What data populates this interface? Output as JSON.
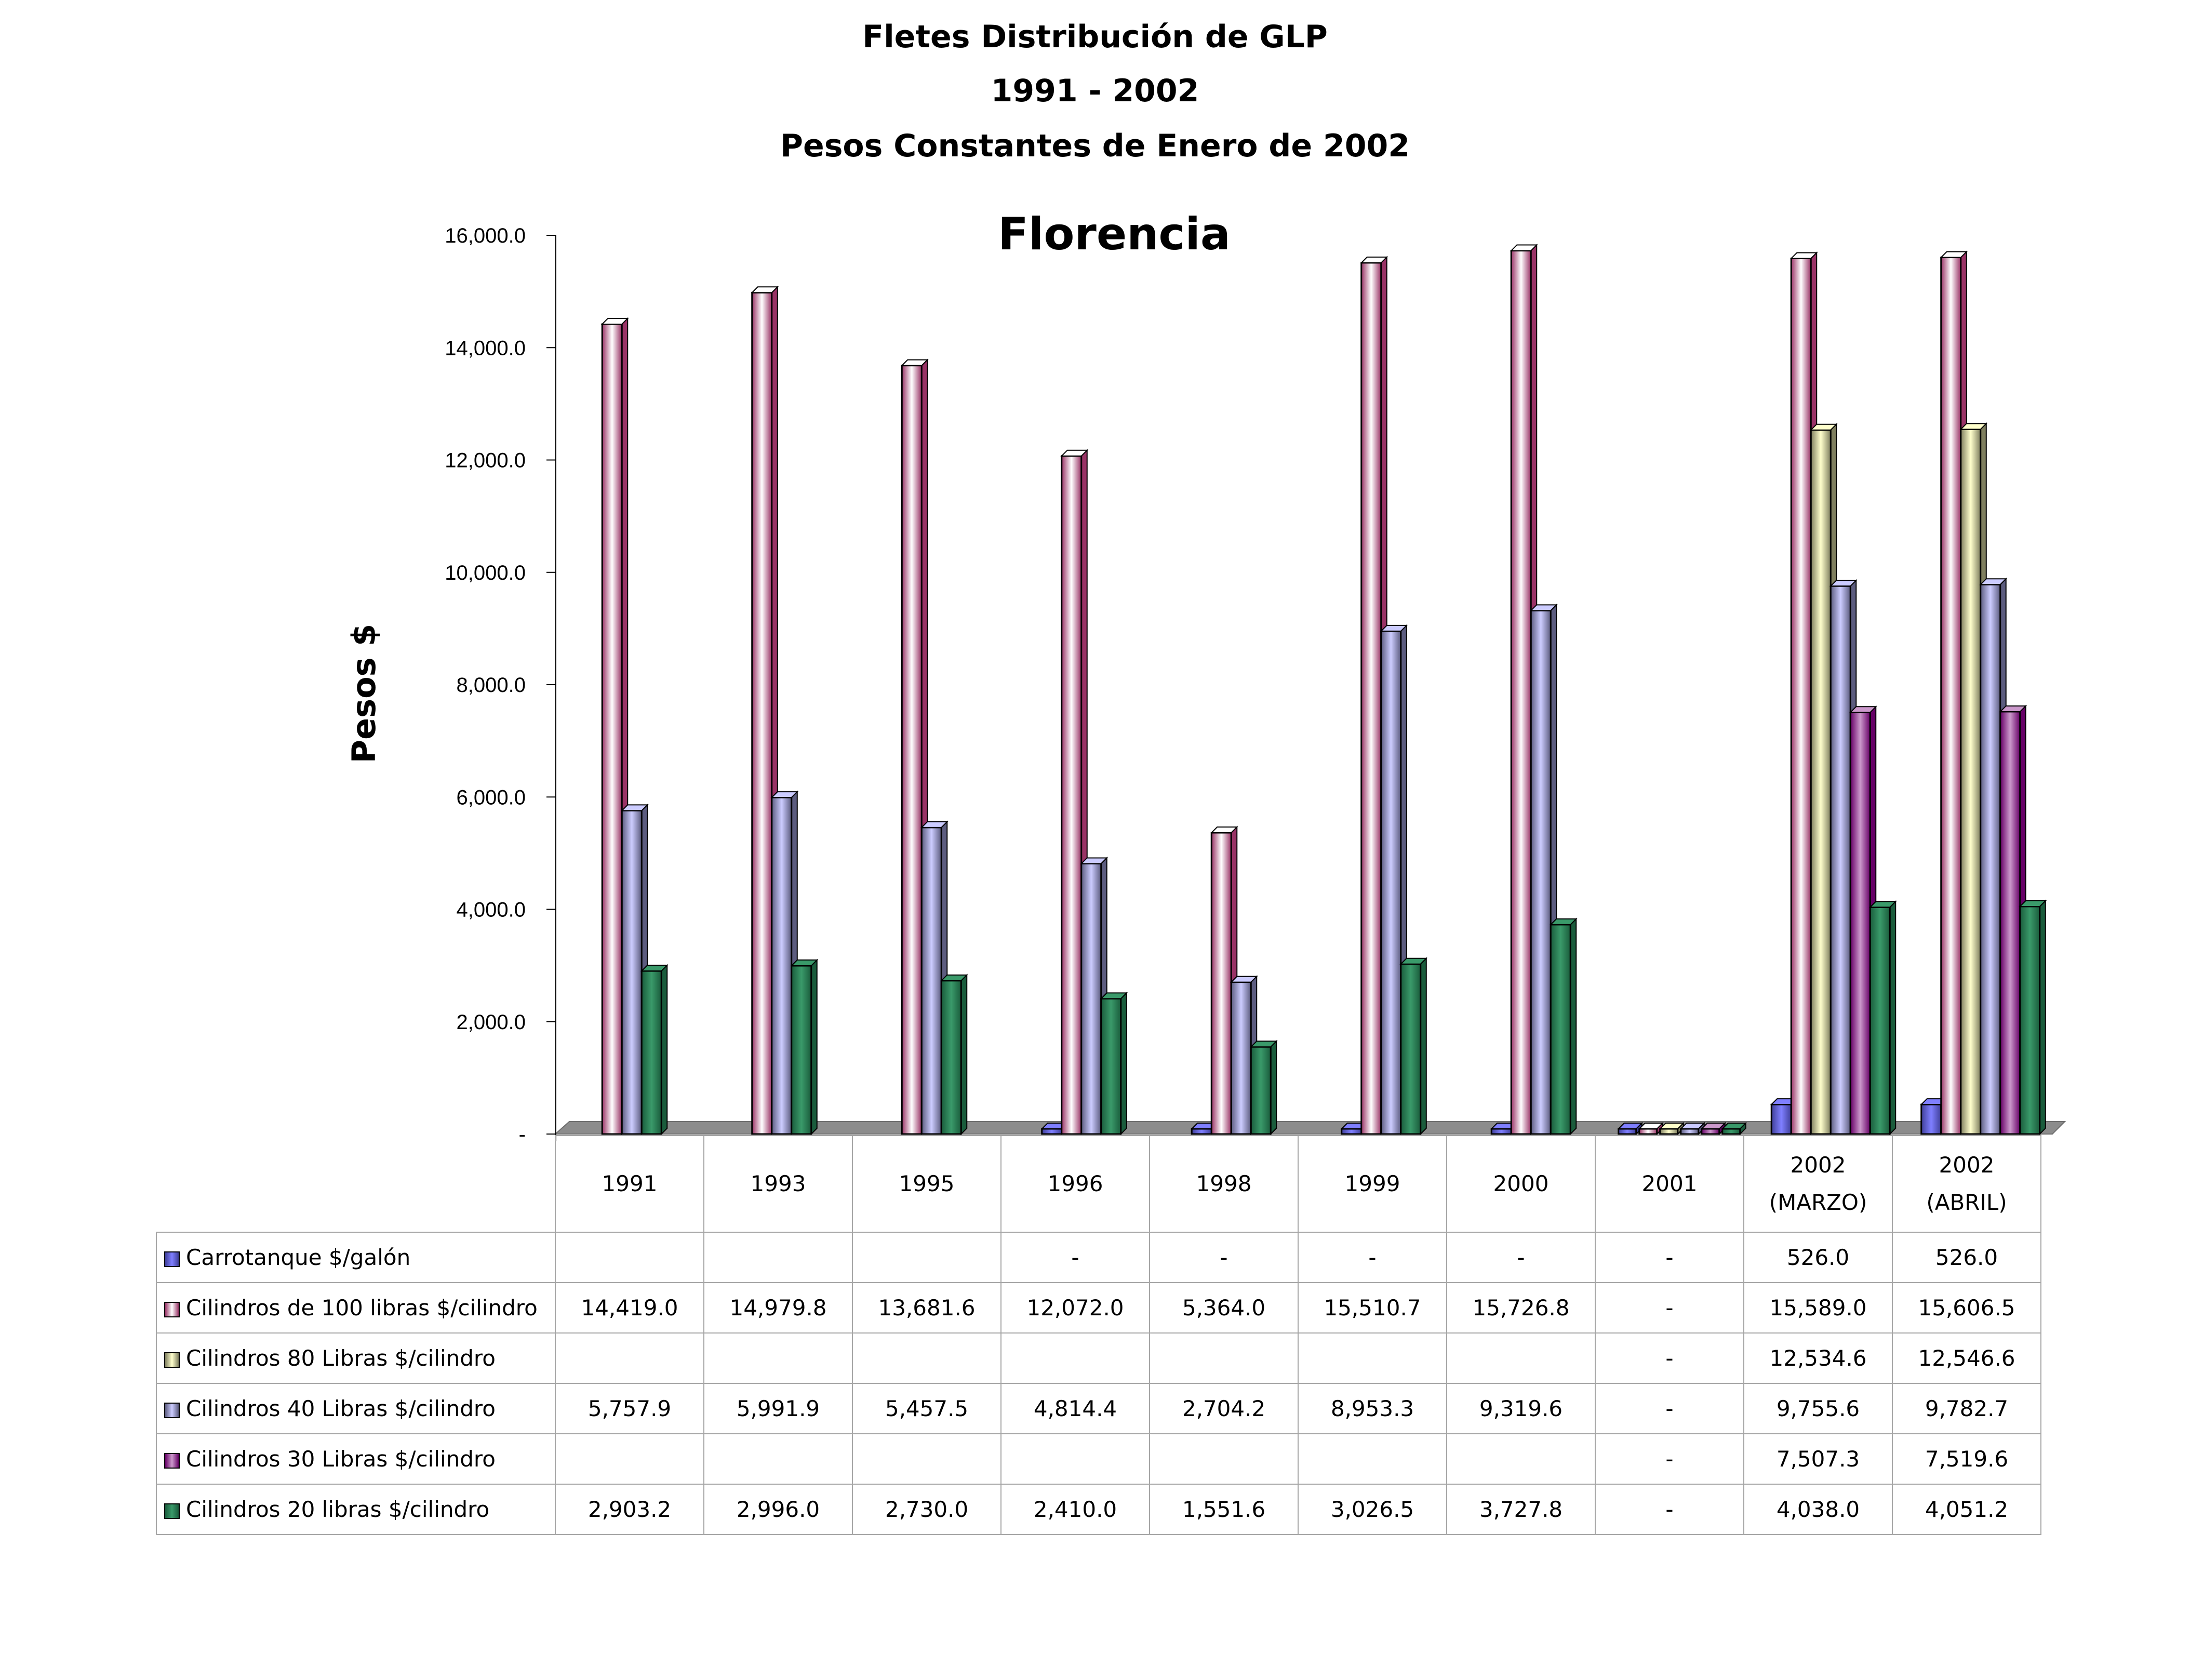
{
  "chart_data": {
    "type": "bar",
    "title_lines": [
      "Fletes  Distribución de GLP",
      "1991 - 2002",
      "Pesos Constantes de Enero de 2002"
    ],
    "subtitle": "Florencia",
    "ylabel": "Pesos $",
    "ylim": [
      0,
      16000
    ],
    "yticks": [
      {
        "value": 0,
        "label": "-"
      },
      {
        "value": 2000,
        "label": "2,000.0"
      },
      {
        "value": 4000,
        "label": "4,000.0"
      },
      {
        "value": 6000,
        "label": "6,000.0"
      },
      {
        "value": 8000,
        "label": "8,000.0"
      },
      {
        "value": 10000,
        "label": "10,000.0"
      },
      {
        "value": 12000,
        "label": "12,000.0"
      },
      {
        "value": 14000,
        "label": "14,000.0"
      },
      {
        "value": 16000,
        "label": "16,000.0"
      }
    ],
    "categories": [
      [
        "1991"
      ],
      [
        "1993"
      ],
      [
        "1995"
      ],
      [
        "1996"
      ],
      [
        "1998"
      ],
      [
        "1999"
      ],
      [
        "2000"
      ],
      [
        "2001"
      ],
      [
        "2002",
        "(MARZO)"
      ],
      [
        "2002",
        "(ABRIL)"
      ]
    ],
    "series": [
      {
        "name": "Carrotanque $/galón",
        "color": "#7f7fff",
        "dark": "#3f3f99",
        "values": [
          null,
          null,
          null,
          0,
          0,
          0,
          0,
          0,
          526.0,
          526.0
        ],
        "labels": [
          "",
          "",
          "",
          "-",
          "-",
          "-",
          "-",
          "-",
          "526.0",
          "526.0"
        ]
      },
      {
        "name": "Cilindros de 100 libras $/cilindro",
        "color": "#ffffff",
        "dark": "#993366",
        "values": [
          14419.0,
          14979.8,
          13681.6,
          12072.0,
          5364.0,
          15510.7,
          15726.8,
          0,
          15589.0,
          15606.5
        ],
        "labels": [
          "14,419.0",
          "14,979.8",
          "13,681.6",
          "12,072.0",
          "5,364.0",
          "15,510.7",
          "15,726.8",
          "-",
          "15,589.0",
          "15,606.5"
        ]
      },
      {
        "name": "Cilindros 80 Libras $/cilindro",
        "color": "#ffffcc",
        "dark": "#7f7f5f",
        "values": [
          null,
          null,
          null,
          null,
          null,
          null,
          null,
          0,
          12534.6,
          12546.6
        ],
        "labels": [
          "",
          "",
          "",
          "",
          "",
          "",
          "",
          "-",
          "12,534.6",
          "12,546.6"
        ]
      },
      {
        "name": "Cilindros 40 Libras $/cilindro",
        "color": "#ccccff",
        "dark": "#5c5c7f",
        "values": [
          5757.9,
          5991.9,
          5457.5,
          4814.4,
          2704.2,
          8953.3,
          9319.6,
          0,
          9755.6,
          9782.7
        ],
        "labels": [
          "5,757.9",
          "5,991.9",
          "5,457.5",
          "4,814.4",
          "2,704.2",
          "8,953.3",
          "9,319.6",
          "-",
          "9,755.6",
          "9,782.7"
        ]
      },
      {
        "name": "Cilindros 30 Libras $/cilindro",
        "color": "#cc99cc",
        "dark": "#660066",
        "values": [
          null,
          null,
          null,
          null,
          null,
          null,
          null,
          0,
          7507.3,
          7519.6
        ],
        "labels": [
          "",
          "",
          "",
          "",
          "",
          "",
          "",
          "-",
          "7,507.3",
          "7,519.6"
        ]
      },
      {
        "name": "Cilindros 20 libras $/cilindro",
        "color": "#3a9a6a",
        "dark": "#1a5c3c",
        "values": [
          2903.2,
          2996.0,
          2730.0,
          2410.0,
          1551.6,
          3026.5,
          3727.8,
          0,
          4038.0,
          4051.2
        ],
        "labels": [
          "2,903.2",
          "2,996.0",
          "2,730.0",
          "2,410.0",
          "1,551.6",
          "3,026.5",
          "3,727.8",
          "-",
          "4,038.0",
          "4,051.2"
        ]
      }
    ]
  }
}
